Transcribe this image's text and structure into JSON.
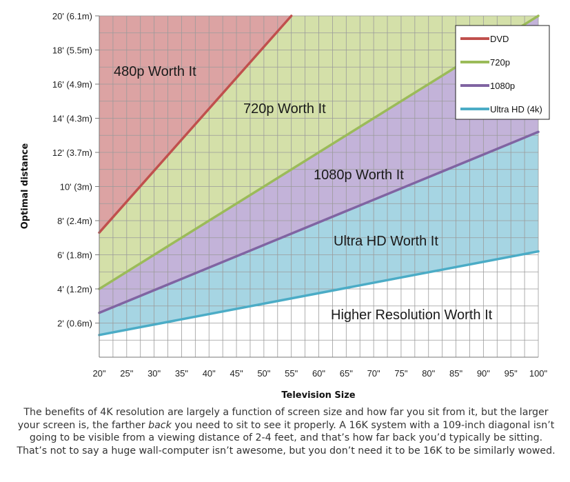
{
  "chart_data": {
    "type": "area",
    "title": "",
    "xlabel": "Television Size",
    "ylabel": "Optimal distance",
    "xlim": [
      20,
      100
    ],
    "ylim": [
      0,
      20
    ],
    "x_ticks": [
      20,
      25,
      30,
      35,
      40,
      45,
      50,
      55,
      60,
      65,
      70,
      75,
      80,
      85,
      90,
      95,
      100
    ],
    "x_tick_labels": [
      "20\"",
      "25\"",
      "30\"",
      "35\"",
      "40\"",
      "45\"",
      "50\"",
      "55\"",
      "60\"",
      "65\"",
      "70\"",
      "75\"",
      "80\"",
      "85\"",
      "90\"",
      "95\"",
      "100\""
    ],
    "y_ticks": [
      2,
      4,
      6,
      8,
      10,
      12,
      14,
      16,
      18,
      20
    ],
    "y_tick_labels": [
      "2' (0.6m)",
      "4' (1.2m)",
      "6' (1.8m)",
      "8' (2.4m)",
      "10' (3m)",
      "12' (3.7m)",
      "14' (4.3m)",
      "16' (4.9m)",
      "18' (5.5m)",
      "20' (6.1m)"
    ],
    "series": [
      {
        "name": "DVD",
        "color": "#c0504d",
        "fill": "#dca3a3",
        "x": [
          20,
          55
        ],
        "y": [
          7.3,
          20
        ]
      },
      {
        "name": "720p",
        "color": "#9bbb59",
        "fill": "#d4e0a9",
        "x": [
          20,
          100
        ],
        "y": [
          4.0,
          20
        ]
      },
      {
        "name": "1080p",
        "color": "#8064a2",
        "fill": "#c3b3d9",
        "x": [
          20,
          100
        ],
        "y": [
          2.6,
          13.2
        ]
      },
      {
        "name": "Ultra HD (4k)",
        "color": "#4bacc6",
        "fill": "#a6d5e3",
        "x": [
          20,
          100
        ],
        "y": [
          1.3,
          6.2
        ]
      }
    ],
    "region_labels": [
      "480p Worth It",
      "720p Worth It",
      "1080p Worth It",
      "Ultra HD Worth It",
      "Higher Resolution Worth It"
    ],
    "grid": true,
    "legend_position": "top-right"
  },
  "caption": {
    "before": "The benefits of 4K resolution are largely a function of screen size and how far you sit from it, but the larger your screen is, the farther ",
    "emphasis": "back",
    "after": " you need to sit to see it properly. A 16K system with a 109-inch diagonal isn’t going to be visible from a viewing distance of 2-4 feet, and that’s how far back you’d typically be sitting. That’s not to say a huge wall-computer isn’t awesome, but you don’t need it to be 16K to be similarly wowed."
  }
}
